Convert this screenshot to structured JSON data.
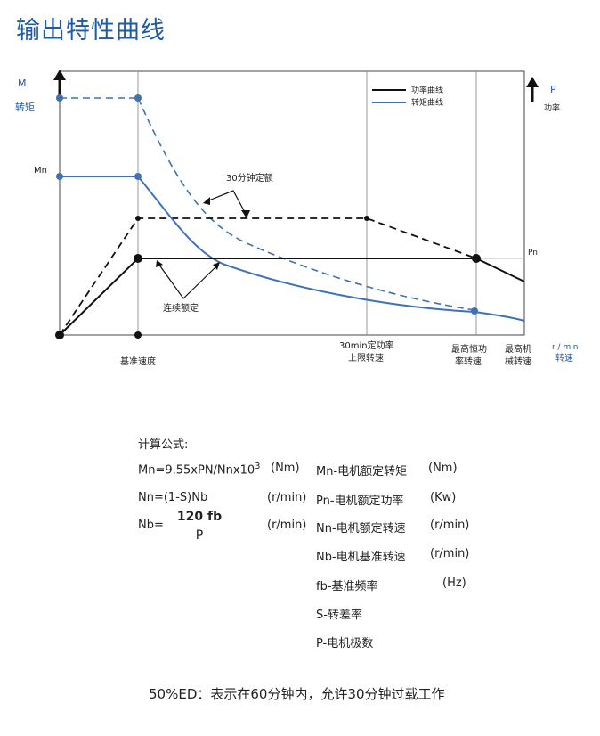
{
  "header": {
    "title": "输出特性曲线"
  },
  "chart": {
    "left_axis": {
      "symbol": "M",
      "label": "转矩",
      "mn_label": "Mn"
    },
    "right_axis": {
      "symbol": "P",
      "label": "功率",
      "pn_label": "Pn"
    },
    "x_axis": {
      "unit": "r / min",
      "label": "转速"
    },
    "legend": {
      "power": "功率曲线",
      "torque": "转矩曲线"
    },
    "annotations": {
      "rated_30min": "30分钟定额",
      "continuous": "连续额定"
    },
    "x_ticks": {
      "base_speed": "基准速度",
      "const_power_30min_line1": "30min定功率",
      "const_power_30min_line2": "上限转速",
      "max_const_power_line1": "最高恒功",
      "max_const_power_line2": "率转速",
      "max_mech_line1": "最高机",
      "max_mech_line2": "械转速"
    },
    "colors": {
      "torque": "#3f72b5",
      "power": "#111111"
    }
  },
  "formulas": {
    "heading": "计算公式:",
    "mn_formula": "Mn=9.55xPN/Nnx10",
    "mn_exp": "3",
    "mn_unit": "(Nm)",
    "nn_formula": "Nn=(1-S)Nb",
    "nn_unit": "(r/min)",
    "nb_lhs": "Nb=",
    "nb_num": "120 fb",
    "nb_den": "P",
    "nb_unit": "(r/min)",
    "defs": [
      {
        "term": "Mn-电机额定转矩",
        "unit": "(Nm)"
      },
      {
        "term": "Pn-电机额定功率",
        "unit": "(Kw)"
      },
      {
        "term": "Nn-电机额定转速",
        "unit": "(r/min)"
      },
      {
        "term": "Nb-电机基准转速",
        "unit": "(r/min)"
      },
      {
        "term": "fb-基准频率",
        "unit": "(Hz)"
      },
      {
        "term": "S-转差率",
        "unit": ""
      },
      {
        "term": "P-电机极数",
        "unit": ""
      }
    ]
  },
  "footer": {
    "note": "50%ED：表示在60分钟内，允许30分钟过载工作"
  }
}
